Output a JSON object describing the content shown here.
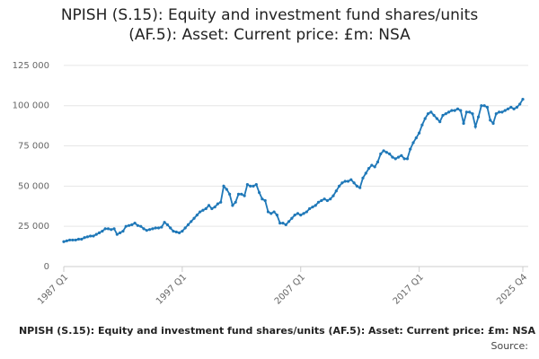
{
  "chart_data": {
    "type": "line",
    "title": "NPISH (S.15): Equity and investment fund shares/units (AF.5): Asset: Current price: £m: NSA",
    "source": "Source:",
    "categories": [
      "1987 Q1",
      null,
      null,
      null,
      null,
      null,
      null,
      null,
      null,
      null,
      null,
      null,
      null,
      null,
      null,
      null,
      null,
      null,
      null,
      null,
      null,
      null,
      null,
      null,
      null,
      null,
      null,
      null,
      null,
      null,
      null,
      null,
      null,
      null,
      null,
      null,
      null,
      null,
      null,
      null,
      "1997 Q1",
      null,
      null,
      null,
      null,
      null,
      null,
      null,
      null,
      null,
      null,
      null,
      null,
      null,
      null,
      null,
      null,
      null,
      null,
      null,
      null,
      null,
      null,
      null,
      null,
      null,
      null,
      null,
      null,
      null,
      null,
      null,
      null,
      null,
      null,
      null,
      null,
      null,
      null,
      null,
      "2007 Q1",
      null,
      null,
      null,
      null,
      null,
      null,
      null,
      null,
      null,
      null,
      null,
      null,
      null,
      null,
      null,
      null,
      null,
      null,
      null,
      null,
      null,
      null,
      null,
      null,
      null,
      null,
      null,
      null,
      null,
      null,
      null,
      null,
      null,
      null,
      null,
      null,
      null,
      null,
      null,
      "2017 Q1",
      null,
      null,
      null,
      null,
      null,
      null,
      null,
      null,
      null,
      null,
      null,
      null,
      null,
      null,
      null,
      null,
      null,
      null,
      null,
      null,
      null,
      null,
      null,
      null,
      null,
      null,
      null,
      null,
      null,
      null,
      null,
      null,
      null,
      null,
      "2025 Q4"
    ],
    "series": [
      {
        "name": "NPISH (S.15): Equity and investment fund shares/units (AF.5): Asset: Current price: £m: NSA",
        "color": "#1f78b8",
        "values": [
          15500,
          16000,
          16500,
          16500,
          16500,
          17000,
          17000,
          18000,
          18500,
          19000,
          19000,
          20000,
          21000,
          22000,
          23500,
          23500,
          23000,
          23500,
          20000,
          21000,
          22000,
          25000,
          25500,
          26000,
          27000,
          25500,
          25000,
          23500,
          22500,
          23000,
          23500,
          24000,
          24000,
          24500,
          27500,
          26000,
          24000,
          22000,
          21500,
          21000,
          22000,
          24000,
          26000,
          28000,
          30000,
          32000,
          34000,
          35000,
          36000,
          38000,
          36000,
          37000,
          39000,
          40000,
          50000,
          48000,
          45000,
          38000,
          40000,
          45000,
          45000,
          44000,
          51000,
          50000,
          50000,
          51000,
          46000,
          42000,
          41000,
          34000,
          33000,
          34000,
          32000,
          27000,
          27000,
          26000,
          28000,
          30000,
          32000,
          33000,
          32000,
          33000,
          34000,
          36000,
          37000,
          38000,
          40000,
          41000,
          42000,
          41000,
          42000,
          44000,
          47000,
          50000,
          52000,
          53000,
          53000,
          54000,
          52000,
          50000,
          49000,
          55000,
          58000,
          61000,
          63000,
          62000,
          65000,
          70000,
          72000,
          71000,
          70000,
          68000,
          67000,
          68000,
          69000,
          67000,
          67000,
          73000,
          77000,
          80000,
          83000,
          88000,
          92000,
          95000,
          96000,
          94000,
          92000,
          90000,
          94000,
          95000,
          96000,
          97000,
          97000,
          98000,
          97000,
          89000,
          96000,
          96000,
          95000,
          87000,
          93000,
          100000,
          100000,
          99000,
          91000,
          89000,
          95000,
          96000,
          96000,
          97000,
          98000,
          99000,
          98000,
          99000,
          101000,
          104000
        ]
      }
    ],
    "ylim": [
      0,
      135000
    ],
    "yticks": [
      0,
      {
        "value": 25000,
        "label": "25 000"
      },
      {
        "value": 50000,
        "label": "50 000"
      },
      {
        "value": 75000,
        "label": "75 000"
      },
      {
        "value": 100000,
        "label": "100 000"
      },
      {
        "value": 125000,
        "label": "125 000"
      }
    ],
    "grid": true
  }
}
